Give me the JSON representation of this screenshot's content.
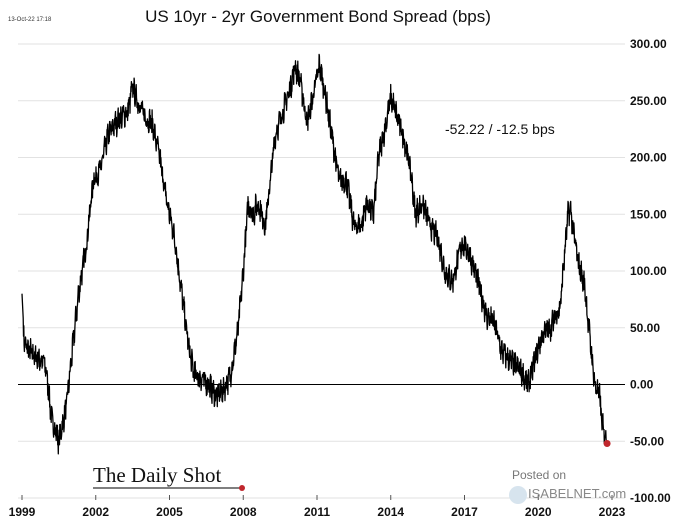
{
  "chart_data": {
    "type": "line",
    "title": "US 10yr - 2yr Government Bond Spread (bps)",
    "timestamp": "13-Oct-22 17:18",
    "annotation": "-52.22  /  -12.5 bps",
    "xlabel": "",
    "ylabel": "",
    "xlim": [
      1999,
      2023
    ],
    "ylim": [
      -100,
      300
    ],
    "x_ticks": [
      "1999",
      "2002",
      "2005",
      "2008",
      "2011",
      "2014",
      "2017",
      "2020",
      "2023"
    ],
    "y_ticks": [
      "300.00",
      "250.00",
      "200.00",
      "150.00",
      "100.00",
      "50.00",
      "0.00",
      "-50.00",
      "-100.00"
    ],
    "grid": true,
    "series": [
      {
        "name": "US 10yr - 2yr spread",
        "color": "#000000",
        "x": [
          1999.0,
          1999.1,
          1999.5,
          1999.9,
          2000.0,
          2000.2,
          2000.5,
          2000.8,
          2001.0,
          2001.3,
          2001.6,
          2001.9,
          2002.2,
          2002.5,
          2002.8,
          2003.0,
          2003.3,
          2003.5,
          2003.7,
          2004.0,
          2004.3,
          2004.6,
          2004.9,
          2005.2,
          2005.5,
          2005.8,
          2006.0,
          2006.3,
          2006.6,
          2006.9,
          2007.2,
          2007.5,
          2007.8,
          2008.0,
          2008.2,
          2008.4,
          2008.6,
          2008.9,
          2009.0,
          2009.3,
          2009.6,
          2009.9,
          2010.1,
          2010.3,
          2010.6,
          2010.9,
          2011.1,
          2011.3,
          2011.6,
          2011.9,
          2012.2,
          2012.5,
          2012.8,
          2013.0,
          2013.3,
          2013.5,
          2013.8,
          2014.0,
          2014.2,
          2014.5,
          2014.8,
          2015.0,
          2015.3,
          2015.6,
          2015.9,
          2016.2,
          2016.5,
          2016.9,
          2017.2,
          2017.5,
          2017.9,
          2018.2,
          2018.5,
          2018.9,
          2019.2,
          2019.6,
          2019.9,
          2020.2,
          2020.5,
          2020.9,
          2021.2,
          2021.3,
          2021.6,
          2021.9,
          2022.1,
          2022.3,
          2022.5,
          2022.6,
          2022.8
        ],
        "values": [
          80,
          35,
          25,
          20,
          10,
          -30,
          -50,
          -20,
          20,
          80,
          120,
          180,
          190,
          220,
          230,
          235,
          240,
          262,
          250,
          235,
          230,
          200,
          160,
          130,
          80,
          30,
          10,
          5,
          0,
          -10,
          -5,
          10,
          50,
          100,
          160,
          150,
          160,
          140,
          160,
          220,
          240,
          260,
          280,
          270,
          230,
          260,
          282,
          260,
          220,
          180,
          180,
          140,
          140,
          160,
          150,
          200,
          230,
          252,
          240,
          220,
          190,
          150,
          160,
          140,
          130,
          100,
          90,
          125,
          115,
          95,
          60,
          55,
          30,
          20,
          15,
          0,
          25,
          45,
          50,
          70,
          148,
          155,
          110,
          85,
          40,
          0,
          -10,
          -35,
          -52
        ]
      }
    ],
    "last_point_color": "#c0272d"
  },
  "branding": {
    "daily_shot": "The Daily Shot",
    "posted_on": "Posted on",
    "isabelnet": "ISABELNET.com"
  }
}
